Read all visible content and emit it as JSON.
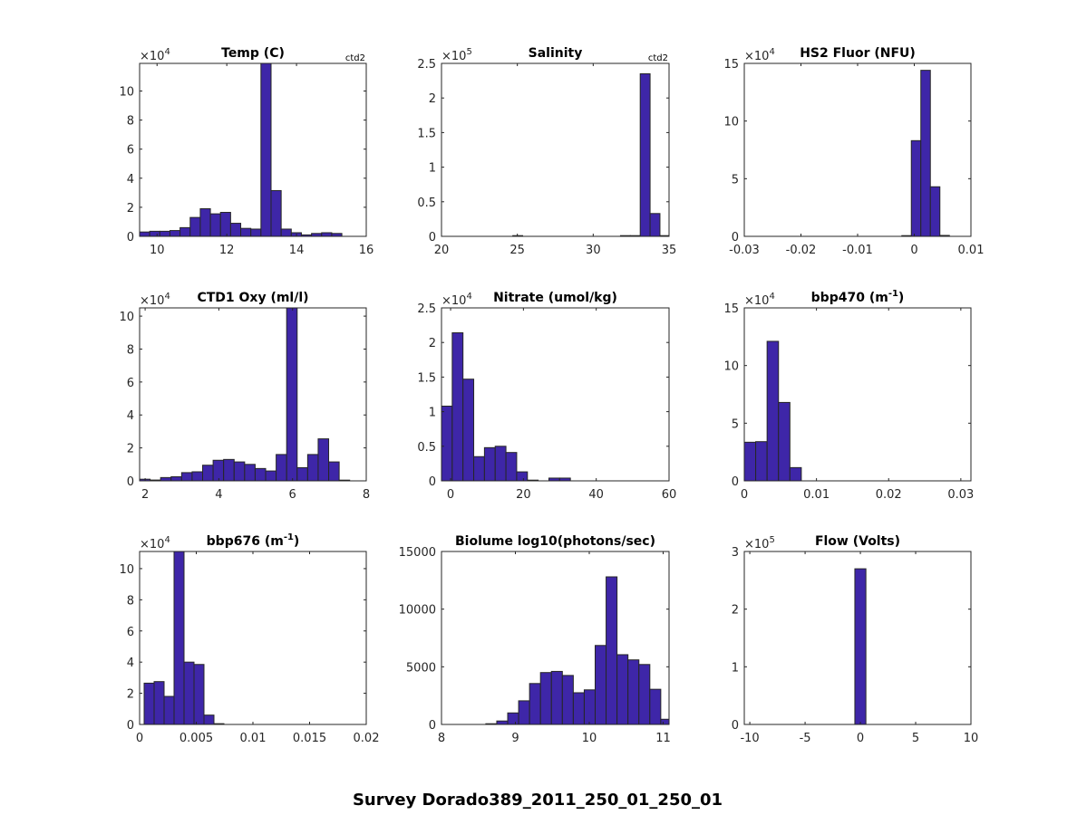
{
  "figure": {
    "suptitle": "Survey Dorado389_2011_250_01_250_01",
    "bar_color": "#3e26a8",
    "edge_color": "#262626"
  },
  "chart_data": [
    {
      "type": "bar",
      "title": "Temp (C)",
      "annotation": "ctd2",
      "exponent_label": "×10",
      "exponent": "4",
      "xlim": [
        9.5,
        16
      ],
      "ylim": [
        0,
        11.9
      ],
      "xticks": [
        10,
        12,
        14,
        16
      ],
      "xtick_labels": [
        "10",
        "12",
        "14",
        "16"
      ],
      "yticks": [
        0,
        2,
        4,
        6,
        8,
        10
      ],
      "ytick_labels": [
        "0",
        "2",
        "4",
        "6",
        "8",
        "10"
      ],
      "bin_start": 9.5,
      "bin_width": 0.29,
      "values": [
        0.3,
        0.35,
        0.35,
        0.4,
        0.6,
        1.3,
        1.9,
        1.55,
        1.65,
        0.9,
        0.55,
        0.5,
        11.9,
        3.15,
        0.5,
        0.25,
        0.1,
        0.2,
        0.25,
        0.2
      ]
    },
    {
      "type": "bar",
      "title": "Salinity",
      "annotation": "ctd2",
      "exponent_label": "×10",
      "exponent": "5",
      "xlim": [
        20,
        35
      ],
      "ylim": [
        0,
        2.5
      ],
      "xticks": [
        20,
        25,
        30,
        35
      ],
      "xtick_labels": [
        "20",
        "25",
        "30",
        "35"
      ],
      "yticks": [
        0,
        0.5,
        1,
        1.5,
        2,
        2.5
      ],
      "ytick_labels": [
        "0",
        "0.5",
        "1",
        "1.5",
        "2",
        "2.5"
      ],
      "bins": [
        [
          24.7,
          25.35,
          0.005
        ],
        [
          31.8,
          32.45,
          0.004
        ],
        [
          32.45,
          33.1,
          0.006
        ],
        [
          33.1,
          33.75,
          2.35
        ],
        [
          33.75,
          34.4,
          0.33
        ],
        [
          34.4,
          35.05,
          0.01
        ]
      ]
    },
    {
      "type": "bar",
      "title": "HS2 Fluor (NFU)",
      "annotation": "",
      "exponent_label": "×10",
      "exponent": "4",
      "xlim": [
        -0.03,
        0.01
      ],
      "ylim": [
        0,
        15
      ],
      "xticks": [
        -0.03,
        -0.02,
        -0.01,
        0,
        0.01
      ],
      "xtick_labels": [
        "-0.03",
        "-0.02",
        "-0.01",
        "0",
        "0.01"
      ],
      "yticks": [
        0,
        5,
        10,
        15
      ],
      "ytick_labels": [
        "0",
        "5",
        "10",
        "15"
      ],
      "bin_start": -0.0022,
      "bin_width": 0.00168,
      "values": [
        0.05,
        8.3,
        14.4,
        4.3,
        0.08
      ]
    },
    {
      "type": "bar",
      "title": "CTD1 Oxy (ml/l)",
      "annotation": "",
      "exponent_label": "×10",
      "exponent": "4",
      "xlim": [
        1.85,
        8
      ],
      "ylim": [
        0,
        10.5
      ],
      "xticks": [
        2,
        4,
        6,
        8
      ],
      "xtick_labels": [
        "2",
        "4",
        "6",
        "8"
      ],
      "yticks": [
        0,
        2,
        4,
        6,
        8,
        10
      ],
      "ytick_labels": [
        "0",
        "2",
        "4",
        "6",
        "8",
        "10"
      ],
      "bin_start": 1.85,
      "bin_width": 0.285,
      "values": [
        0.1,
        0.05,
        0.2,
        0.25,
        0.5,
        0.55,
        0.95,
        1.25,
        1.3,
        1.15,
        1.0,
        0.75,
        0.6,
        1.6,
        10.5,
        0.8,
        1.6,
        2.55,
        1.15,
        0.03
      ]
    },
    {
      "type": "bar",
      "title": "Nitrate (umol/kg)",
      "annotation": "",
      "exponent_label": "×10",
      "exponent": "4",
      "xlim": [
        -2.5,
        60
      ],
      "ylim": [
        0,
        2.5
      ],
      "xticks": [
        0,
        20,
        40,
        60
      ],
      "xtick_labels": [
        "0",
        "20",
        "40",
        "60"
      ],
      "yticks": [
        0,
        0.5,
        1,
        1.5,
        2,
        2.5
      ],
      "ytick_labels": [
        "0",
        "0.5",
        "1",
        "1.5",
        "2",
        "2.5"
      ],
      "bin_start": -2.5,
      "bin_width": 2.95,
      "values": [
        1.08,
        2.14,
        1.47,
        0.35,
        0.48,
        0.5,
        0.41,
        0.13,
        0.01,
        0,
        0.04,
        0.04
      ]
    },
    {
      "type": "bar",
      "title": "bbp470 (m",
      "title_sup": "-1",
      "title_end": ")",
      "annotation": "",
      "exponent_label": "×10",
      "exponent": "4",
      "xlim": [
        0,
        0.0314
      ],
      "ylim": [
        0,
        15
      ],
      "xticks": [
        0,
        0.01,
        0.02,
        0.03
      ],
      "xtick_labels": [
        "0",
        "0.01",
        "0.02",
        "0.03"
      ],
      "yticks": [
        0,
        5,
        10,
        15
      ],
      "ytick_labels": [
        "0",
        "5",
        "10",
        "15"
      ],
      "bin_start": 0,
      "bin_width": 0.00158,
      "values": [
        3.35,
        3.4,
        12.1,
        6.8,
        1.15
      ]
    },
    {
      "type": "bar",
      "title": "bbp676 (m",
      "title_sup": "-1",
      "title_end": ")",
      "annotation": "",
      "exponent_label": "×10",
      "exponent": "4",
      "xlim": [
        0,
        0.02
      ],
      "ylim": [
        0,
        11.1
      ],
      "xticks": [
        0,
        0.005,
        0.01,
        0.015,
        0.02
      ],
      "xtick_labels": [
        "0",
        "0.005",
        "0.01",
        "0.015",
        "0.02"
      ],
      "yticks": [
        0,
        2,
        4,
        6,
        8,
        10
      ],
      "ytick_labels": [
        "0",
        "2",
        "4",
        "6",
        "8",
        "10"
      ],
      "bin_start": 0.0004,
      "bin_width": 0.00088,
      "values": [
        2.65,
        2.75,
        1.8,
        11.1,
        4.0,
        3.85,
        0.6,
        0.05
      ]
    },
    {
      "type": "bar",
      "title": "Biolume log10(photons/sec)",
      "annotation": "",
      "exponent_label": "",
      "exponent": "",
      "xlim": [
        8,
        11.08
      ],
      "ylim": [
        0,
        15000
      ],
      "xticks": [
        8,
        9,
        10,
        11
      ],
      "xtick_labels": [
        "8",
        "9",
        "10",
        "11"
      ],
      "yticks": [
        0,
        5000,
        10000,
        15000
      ],
      "ytick_labels": [
        "0",
        "5000",
        "10000",
        "15000"
      ],
      "bin_start": 8.6,
      "bin_width": 0.148,
      "values": [
        50,
        300,
        1000,
        2050,
        3550,
        4500,
        4600,
        4250,
        2750,
        3000,
        6850,
        12800,
        6050,
        5600,
        5200,
        3050,
        450
      ]
    },
    {
      "type": "bar",
      "title": "Flow (Volts)",
      "annotation": "",
      "exponent_label": "×10",
      "exponent": "5",
      "xlim": [
        -10.5,
        10
      ],
      "ylim": [
        0,
        3
      ],
      "xticks": [
        -10,
        -5,
        0,
        5,
        10
      ],
      "xtick_labels": [
        "-10",
        "-5",
        "0",
        "5",
        "10"
      ],
      "yticks": [
        0,
        1,
        2,
        3
      ],
      "ytick_labels": [
        "0",
        "1",
        "2",
        "3"
      ],
      "bins": [
        [
          -0.5,
          0.5,
          2.7
        ]
      ]
    }
  ]
}
